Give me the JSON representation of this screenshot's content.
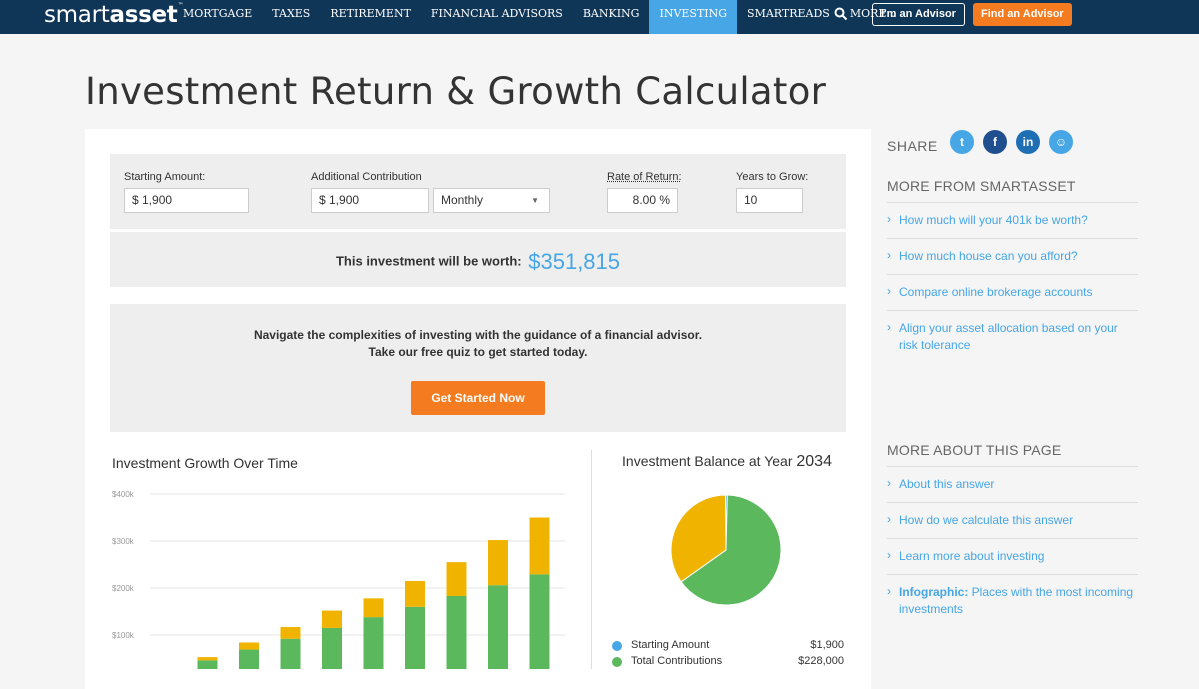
{
  "nav": {
    "logo_light": "smart",
    "logo_bold": "asset",
    "logo_tm": "™",
    "items": [
      {
        "label": "MORTGAGE"
      },
      {
        "label": "TAXES"
      },
      {
        "label": "RETIREMENT"
      },
      {
        "label": "FINANCIAL ADVISORS"
      },
      {
        "label": "BANKING"
      },
      {
        "label": "INVESTING",
        "active": true
      },
      {
        "label": "SMARTREADS"
      },
      {
        "label": "MORE"
      }
    ],
    "search_icon": "search-icon",
    "advisor_button": "I'm an Advisor",
    "find_button": "Find an Advisor"
  },
  "page": {
    "title": "Investment Return & Growth Calculator"
  },
  "calculator": {
    "starting_amount_label": "Starting Amount:",
    "starting_amount_value": "$ 1,900",
    "contribution_label": "Additional Contribution",
    "contribution_value": "$ 1,900",
    "frequency_value": "Monthly",
    "rate_label": "Rate of Return:",
    "rate_value": "8.00 %",
    "years_label": "Years to Grow:",
    "years_value": "10",
    "result_text": "This investment will be worth:",
    "result_value": "$351,815"
  },
  "cta": {
    "line1": "Navigate the complexities of investing with the guidance of a financial advisor.",
    "line2": "Take our free quiz to get started today.",
    "button": "Get Started Now"
  },
  "chart_data": [
    {
      "type": "bar",
      "title": "Investment Growth Over Time",
      "ylim": [
        0,
        400000
      ],
      "y_ticks": [
        "$400k",
        "$300k",
        "$200k",
        "$100k"
      ],
      "y_tick_values": [
        400000,
        300000,
        200000,
        100000
      ],
      "stacked": true,
      "colors": {
        "contributions": "#5cb85c",
        "growth": "#f0b400"
      },
      "series": [
        {
          "values": [
            23000,
            46000,
            69000,
            92000,
            115000,
            138000,
            160000,
            183000,
            206000,
            229000
          ]
        },
        {
          "values": [
            4000,
            7000,
            15000,
            25000,
            37000,
            40000,
            55000,
            72000,
            96000,
            121000
          ]
        }
      ]
    },
    {
      "type": "pie",
      "title_prefix": "Investment Balance at Year",
      "title_year": "2034",
      "slices": [
        {
          "name": "Starting Amount",
          "value": 1900,
          "display": "$1,900",
          "color": "#46a6e6"
        },
        {
          "name": "Total Contributions",
          "value": 228000,
          "display": "$228,000",
          "color": "#5cb85c"
        },
        {
          "value": 121915,
          "color": "#f0b400"
        }
      ]
    }
  ],
  "sidebar": {
    "share_label": "SHARE",
    "share_icons": [
      {
        "name": "twitter-icon",
        "glyph": "t",
        "color": "#46a6e6"
      },
      {
        "name": "facebook-icon",
        "glyph": "f",
        "color": "#1f4f8f"
      },
      {
        "name": "linkedin-icon",
        "glyph": "in",
        "color": "#1f6fb5"
      },
      {
        "name": "reddit-icon",
        "glyph": "☺",
        "color": "#46a6e6"
      }
    ],
    "more_from_title": "MORE FROM SMARTASSET",
    "more_from_links": [
      {
        "text": "How much will your 401k be worth?"
      },
      {
        "text": "How much house can you afford?"
      },
      {
        "text": "Compare online brokerage accounts"
      },
      {
        "text": "Align your asset allocation based on your risk tolerance"
      }
    ],
    "more_about_title": "MORE ABOUT THIS PAGE",
    "more_about_links": [
      {
        "text": "About this answer"
      },
      {
        "text": "How do we calculate this answer"
      },
      {
        "text": "Learn more about investing"
      },
      {
        "bold": "Infographic:",
        "text": " Places with the most incoming investments"
      }
    ]
  }
}
